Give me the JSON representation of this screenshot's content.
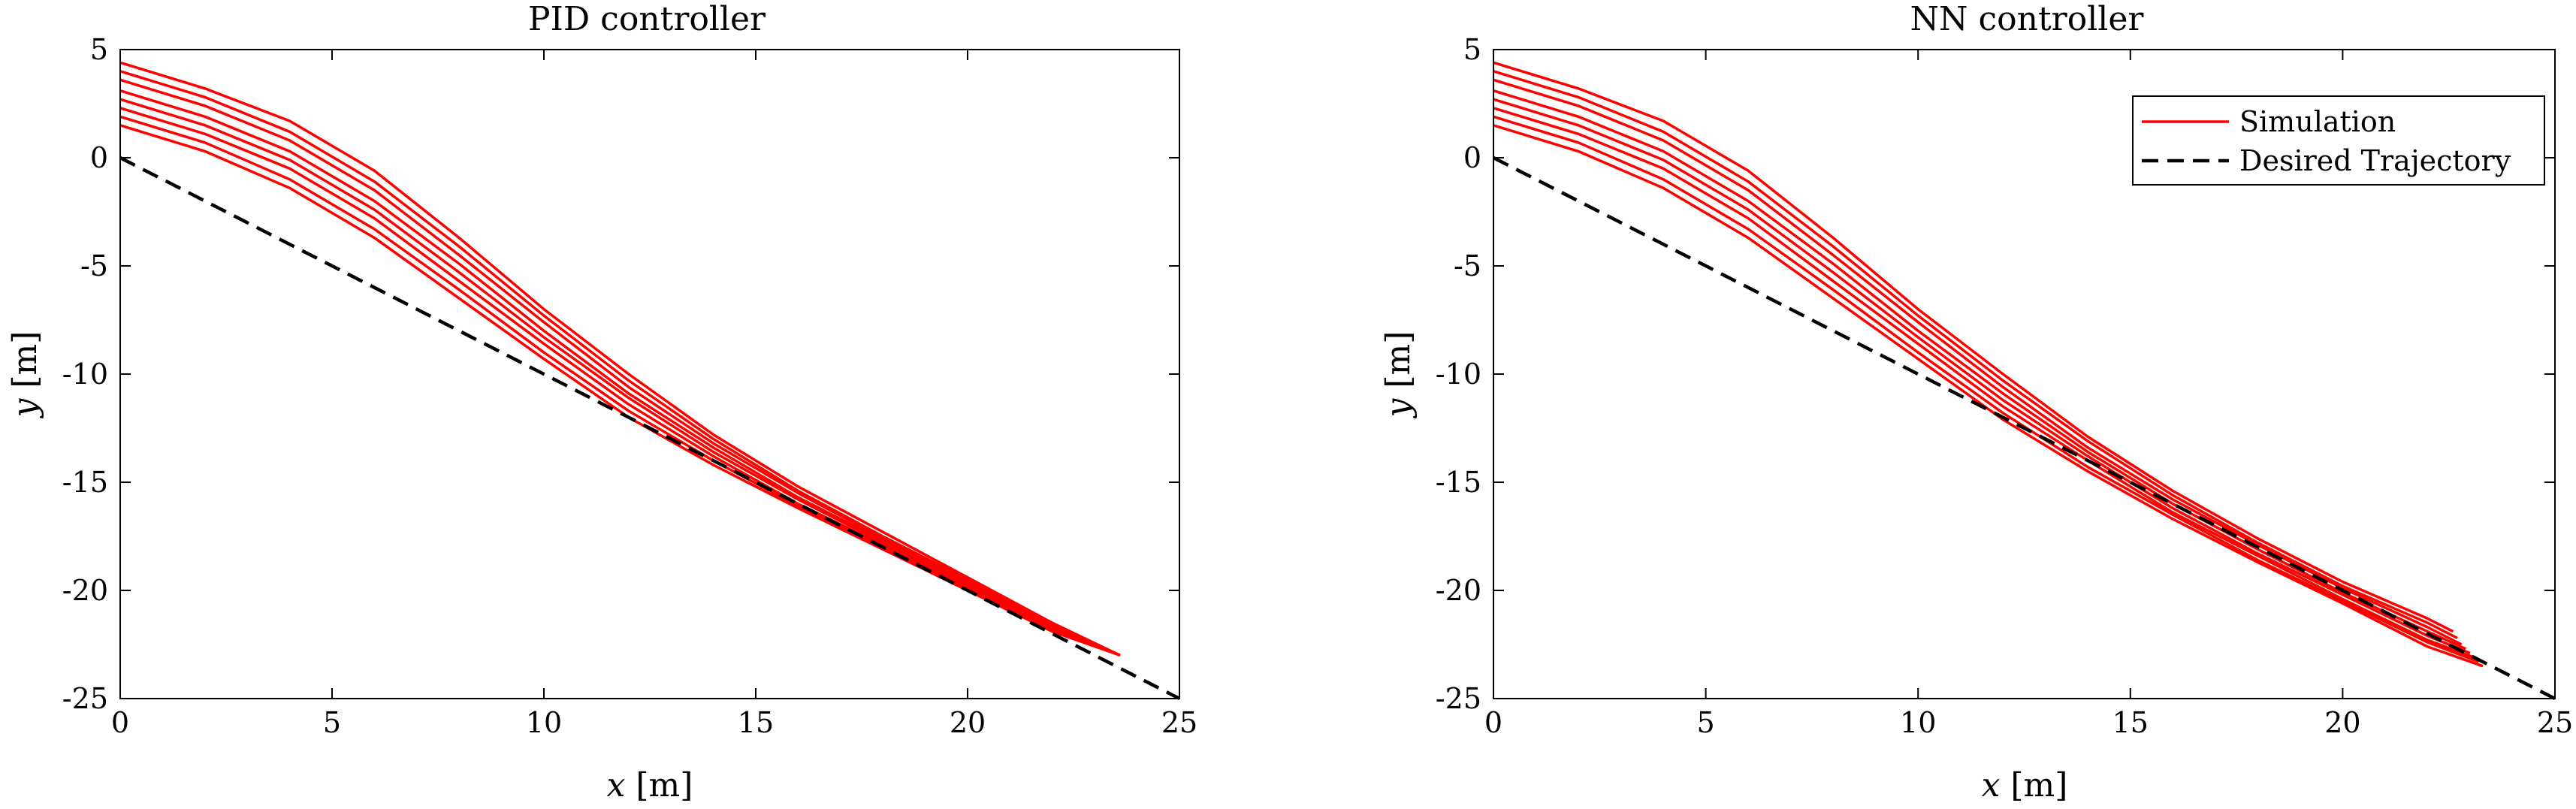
{
  "chart_data": [
    {
      "type": "line",
      "title": "PID controller",
      "xlabel": "x [m]",
      "ylabel": "y [m]",
      "xlim": [
        0,
        25
      ],
      "ylim": [
        -25,
        5
      ],
      "xticks": [
        0,
        5,
        10,
        15,
        20,
        25
      ],
      "yticks": [
        5,
        0,
        -5,
        -10,
        -15,
        -20,
        -25
      ],
      "grid": false,
      "legend": null,
      "colors": {
        "simulation": "#ff0000",
        "desired": "#000000"
      },
      "series": [
        {
          "group": "simulation",
          "style": "solid",
          "x": [
            0,
            2,
            4,
            6,
            8,
            10,
            12,
            14,
            16,
            18,
            20,
            22,
            23.6
          ],
          "y": [
            4.4,
            3.2,
            1.7,
            -0.6,
            -3.7,
            -7.0,
            -10.0,
            -12.8,
            -15.2,
            -17.3,
            -19.4,
            -21.5,
            -23.0
          ]
        },
        {
          "group": "simulation",
          "style": "solid",
          "x": [
            0,
            2,
            4,
            6,
            8,
            10,
            12,
            14,
            16,
            18,
            20,
            22,
            23.6
          ],
          "y": [
            4.0,
            2.8,
            1.2,
            -1.1,
            -4.1,
            -7.3,
            -10.3,
            -13.0,
            -15.4,
            -17.5,
            -19.5,
            -21.6,
            -23.0
          ]
        },
        {
          "group": "simulation",
          "style": "solid",
          "x": [
            0,
            2,
            4,
            6,
            8,
            10,
            12,
            14,
            16,
            18,
            20,
            22,
            23.6
          ],
          "y": [
            3.6,
            2.4,
            0.8,
            -1.5,
            -4.5,
            -7.6,
            -10.6,
            -13.2,
            -15.5,
            -17.6,
            -19.6,
            -21.6,
            -23.0
          ]
        },
        {
          "group": "simulation",
          "style": "solid",
          "x": [
            0,
            2,
            4,
            6,
            8,
            10,
            12,
            14,
            16,
            18,
            20,
            22,
            23.6
          ],
          "y": [
            3.1,
            1.9,
            0.3,
            -2.0,
            -4.9,
            -8.0,
            -10.9,
            -13.4,
            -15.7,
            -17.7,
            -19.7,
            -21.7,
            -23.0
          ]
        },
        {
          "group": "simulation",
          "style": "solid",
          "x": [
            0,
            2,
            4,
            6,
            8,
            10,
            12,
            14,
            16,
            18,
            20,
            22,
            23.6
          ],
          "y": [
            2.7,
            1.5,
            -0.1,
            -2.4,
            -5.3,
            -8.3,
            -11.1,
            -13.6,
            -15.8,
            -17.8,
            -19.8,
            -21.7,
            -23.0
          ]
        },
        {
          "group": "simulation",
          "style": "solid",
          "x": [
            0,
            2,
            4,
            6,
            8,
            10,
            12,
            14,
            16,
            18,
            20,
            22,
            23.6
          ],
          "y": [
            2.3,
            1.1,
            -0.5,
            -2.8,
            -5.7,
            -8.6,
            -11.4,
            -13.8,
            -16.0,
            -17.9,
            -19.8,
            -21.8,
            -23.0
          ]
        },
        {
          "group": "simulation",
          "style": "solid",
          "x": [
            0,
            2,
            4,
            6,
            8,
            10,
            12,
            14,
            16,
            18,
            20,
            22,
            23.6
          ],
          "y": [
            1.9,
            0.7,
            -1.0,
            -3.3,
            -6.1,
            -9.0,
            -11.7,
            -14.0,
            -16.1,
            -18.0,
            -19.9,
            -21.8,
            -23.0
          ]
        },
        {
          "group": "simulation",
          "style": "solid",
          "x": [
            0,
            2,
            4,
            6,
            8,
            10,
            12,
            14,
            16,
            18,
            20,
            22,
            23.6
          ],
          "y": [
            1.5,
            0.3,
            -1.4,
            -3.7,
            -6.5,
            -9.3,
            -12.0,
            -14.2,
            -16.2,
            -18.1,
            -20.0,
            -21.9,
            -23.0
          ]
        },
        {
          "group": "desired",
          "style": "dashed",
          "x": [
            0,
            25
          ],
          "y": [
            0,
            -25
          ]
        }
      ]
    },
    {
      "type": "line",
      "title": "NN controller",
      "xlabel": "x [m]",
      "ylabel": "y [m]",
      "xlim": [
        0,
        25
      ],
      "ylim": [
        -25,
        5
      ],
      "xticks": [
        0,
        5,
        10,
        15,
        20,
        25
      ],
      "yticks": [
        5,
        0,
        -5,
        -10,
        -15,
        -20,
        -25
      ],
      "grid": false,
      "legend": {
        "position": "top-right",
        "entries": [
          {
            "label": "Simulation",
            "style": "solid",
            "color": "#ff0000"
          },
          {
            "label": "Desired Trajectory",
            "style": "dashed",
            "color": "#000000"
          }
        ]
      },
      "colors": {
        "simulation": "#ff0000",
        "desired": "#000000"
      },
      "series": [
        {
          "group": "simulation",
          "style": "solid",
          "x": [
            0,
            2,
            4,
            6,
            8,
            10,
            12,
            14,
            16,
            18,
            20,
            22,
            22.6
          ],
          "y": [
            4.4,
            3.2,
            1.7,
            -0.6,
            -3.7,
            -7.0,
            -10.0,
            -12.9,
            -15.4,
            -17.6,
            -19.6,
            -21.3,
            -21.9
          ]
        },
        {
          "group": "simulation",
          "style": "solid",
          "x": [
            0,
            2,
            4,
            6,
            8,
            10,
            12,
            14,
            16,
            18,
            20,
            22,
            22.7
          ],
          "y": [
            4.0,
            2.8,
            1.2,
            -1.1,
            -4.1,
            -7.3,
            -10.3,
            -13.1,
            -15.6,
            -17.8,
            -19.8,
            -21.5,
            -22.2
          ]
        },
        {
          "group": "simulation",
          "style": "solid",
          "x": [
            0,
            2,
            4,
            6,
            8,
            10,
            12,
            14,
            16,
            18,
            20,
            22,
            22.8
          ],
          "y": [
            3.6,
            2.4,
            0.8,
            -1.5,
            -4.5,
            -7.6,
            -10.6,
            -13.4,
            -15.8,
            -17.9,
            -19.9,
            -21.7,
            -22.5
          ]
        },
        {
          "group": "simulation",
          "style": "solid",
          "x": [
            0,
            2,
            4,
            6,
            8,
            10,
            12,
            14,
            16,
            18,
            20,
            22,
            22.9
          ],
          "y": [
            3.1,
            1.9,
            0.3,
            -2.0,
            -4.9,
            -8.0,
            -10.9,
            -13.6,
            -16.0,
            -18.1,
            -20.1,
            -21.9,
            -22.7
          ]
        },
        {
          "group": "simulation",
          "style": "solid",
          "x": [
            0,
            2,
            4,
            6,
            8,
            10,
            12,
            14,
            16,
            18,
            20,
            22,
            23.0
          ],
          "y": [
            2.7,
            1.5,
            -0.1,
            -2.4,
            -5.3,
            -8.3,
            -11.2,
            -13.8,
            -16.2,
            -18.3,
            -20.2,
            -22.1,
            -22.9
          ]
        },
        {
          "group": "simulation",
          "style": "solid",
          "x": [
            0,
            2,
            4,
            6,
            8,
            10,
            12,
            14,
            16,
            18,
            20,
            22,
            23.1
          ],
          "y": [
            2.3,
            1.1,
            -0.5,
            -2.8,
            -5.7,
            -8.6,
            -11.5,
            -14.0,
            -16.4,
            -18.4,
            -20.4,
            -22.3,
            -23.1
          ]
        },
        {
          "group": "simulation",
          "style": "solid",
          "x": [
            0,
            2,
            4,
            6,
            8,
            10,
            12,
            14,
            16,
            18,
            20,
            22,
            23.2
          ],
          "y": [
            1.9,
            0.7,
            -1.0,
            -3.3,
            -6.1,
            -9.0,
            -11.8,
            -14.3,
            -16.5,
            -18.6,
            -20.5,
            -22.4,
            -23.3
          ]
        },
        {
          "group": "simulation",
          "style": "solid",
          "x": [
            0,
            2,
            4,
            6,
            8,
            10,
            12,
            14,
            16,
            18,
            20,
            22,
            23.3
          ],
          "y": [
            1.5,
            0.3,
            -1.4,
            -3.7,
            -6.5,
            -9.3,
            -12.1,
            -14.5,
            -16.7,
            -18.7,
            -20.6,
            -22.6,
            -23.5
          ]
        },
        {
          "group": "desired",
          "style": "dashed",
          "x": [
            0,
            25
          ],
          "y": [
            0,
            -25
          ]
        }
      ]
    }
  ]
}
